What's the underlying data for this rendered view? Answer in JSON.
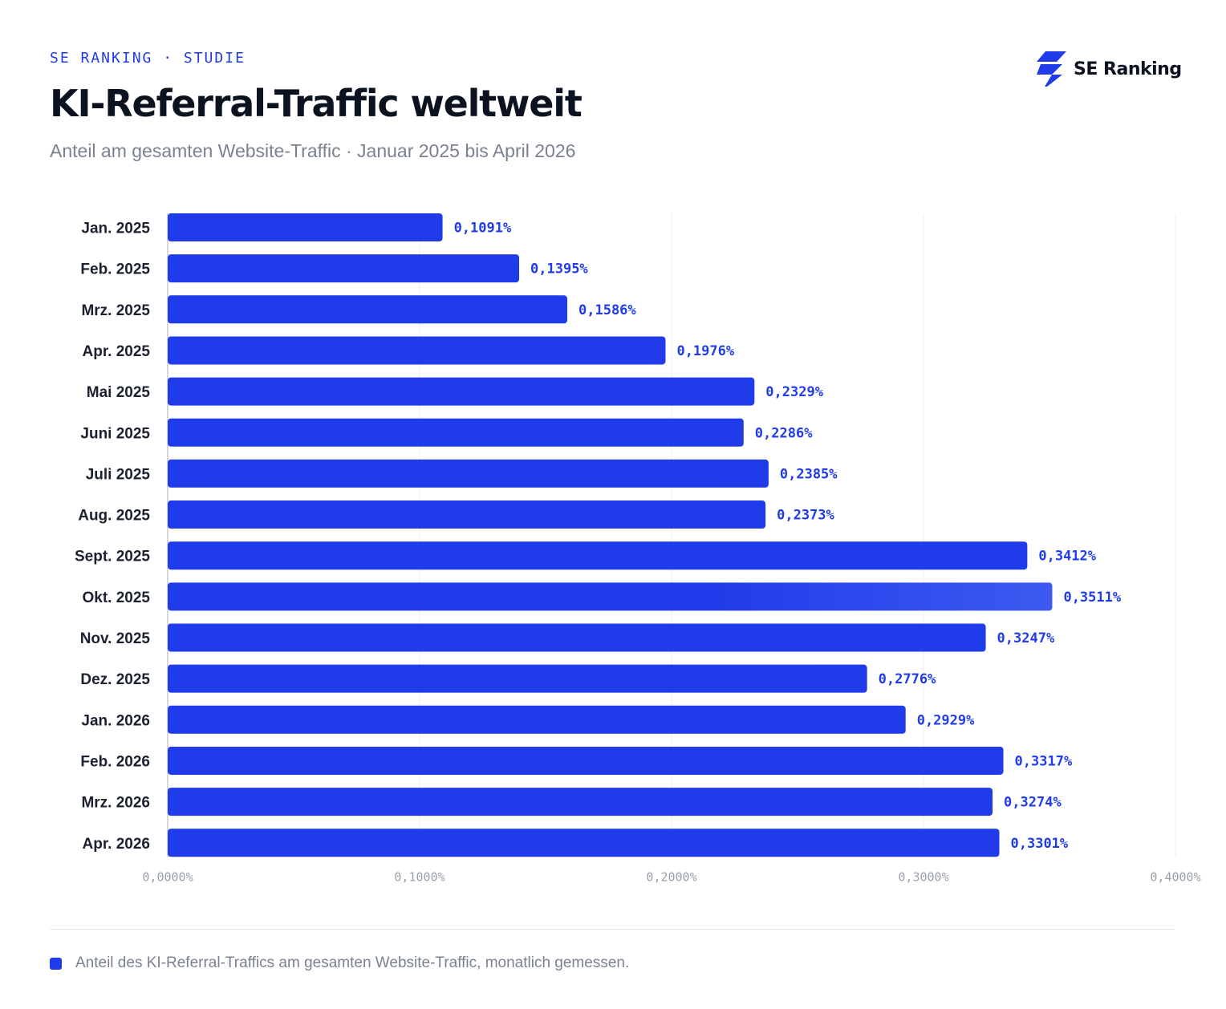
{
  "header": {
    "eyebrow": "SE RANKING · STUDIE",
    "title": "KI-Referral-Traffic weltweit",
    "subtitle": "Anteil am gesamten Website-Traffic · Januar 2025 bis April 2026"
  },
  "brand": {
    "name": "SE Ranking",
    "icon": "se-ranking-logo-icon"
  },
  "colors": {
    "bar": "#1f3bea",
    "bar_highlight": "#3d5af1",
    "value_label": "#1f3bea",
    "grid": "#eceef3"
  },
  "chart_data": {
    "type": "bar",
    "orientation": "horizontal",
    "categories": [
      "Jan. 2025",
      "Feb. 2025",
      "Mrz. 2025",
      "Apr. 2025",
      "Mai 2025",
      "Juni 2025",
      "Juli 2025",
      "Aug. 2025",
      "Sept. 2025",
      "Okt. 2025",
      "Nov. 2025",
      "Dez. 2025",
      "Jan. 2026",
      "Feb. 2026",
      "Mrz. 2026",
      "Apr. 2026"
    ],
    "values": [
      0.1091,
      0.1395,
      0.1586,
      0.1976,
      0.2329,
      0.2286,
      0.2385,
      0.2373,
      0.3412,
      0.3511,
      0.3247,
      0.2776,
      0.2929,
      0.3317,
      0.3274,
      0.3301
    ],
    "value_labels": [
      "0,1091%",
      "0,1395%",
      "0,1586%",
      "0,1976%",
      "0,2329%",
      "0,2286%",
      "0,2385%",
      "0,2373%",
      "0,3412%",
      "0,3511%",
      "0,3247%",
      "0,2776%",
      "0,2929%",
      "0,3317%",
      "0,3274%",
      "0,3301%"
    ],
    "highlight_category": "Okt. 2025",
    "xlim": [
      0,
      0.4
    ],
    "xticks": [
      0,
      0.1,
      0.2,
      0.3,
      0.4
    ],
    "xtick_labels": [
      "0,0000%",
      "0,1000%",
      "0,2000%",
      "0,3000%",
      "0,4000%"
    ],
    "grid": true,
    "legend_position": "bottom-left"
  },
  "legend": {
    "text": "Anteil des KI-Referral-Traffics am gesamten Website-Traffic, monatlich gemessen."
  }
}
